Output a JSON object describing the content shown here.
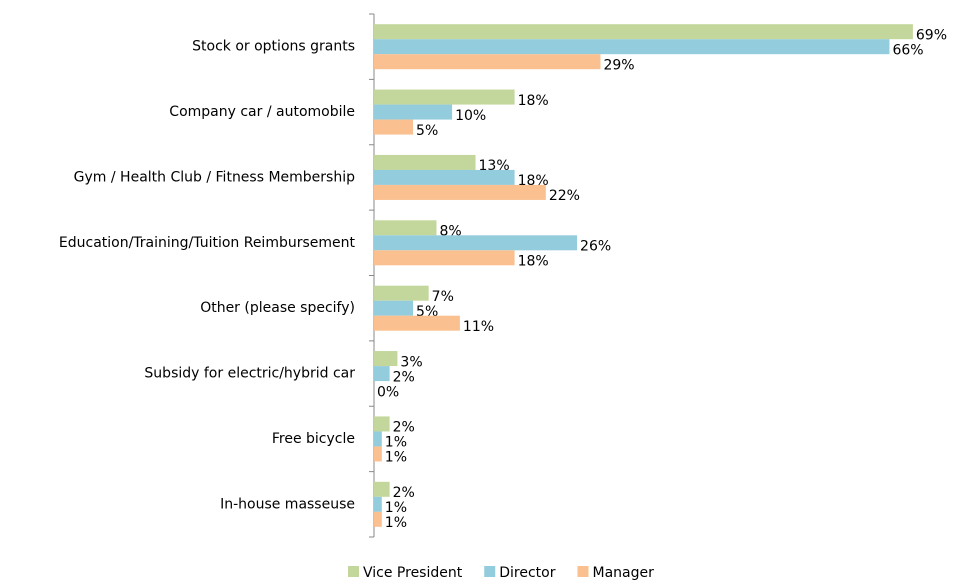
{
  "chart_data": {
    "type": "bar",
    "orientation": "horizontal",
    "categories": [
      "Stock or options grants",
      "Company car / automobile",
      "Gym / Health Club / Fitness Membership",
      "Education/Training/Tuition Reimbursement",
      "Other (please specify)",
      "Subsidy for electric/hybrid car",
      "Free bicycle",
      "In-house masseuse"
    ],
    "series": [
      {
        "name": "Vice President",
        "color": "#c3d69b",
        "values": [
          69,
          18,
          13,
          8,
          7,
          3,
          2,
          2
        ],
        "value_labels": [
          "69%",
          "18%",
          "13%",
          "8%",
          "7%",
          "3%",
          "2%",
          "2%"
        ]
      },
      {
        "name": "Director",
        "color": "#93cddd",
        "values": [
          66,
          10,
          18,
          26,
          5,
          2,
          1,
          1
        ],
        "value_labels": [
          "66%",
          "10%",
          "18%",
          "26%",
          "5%",
          "2%",
          "1%",
          "1%"
        ]
      },
      {
        "name": "Manager",
        "color": "#fac090",
        "values": [
          29,
          5,
          22,
          18,
          11,
          0,
          1,
          1
        ],
        "value_labels": [
          "29%",
          "5%",
          "22%",
          "18%",
          "11%",
          "0%",
          "1%",
          "1%"
        ]
      }
    ],
    "legend": "bottom"
  }
}
